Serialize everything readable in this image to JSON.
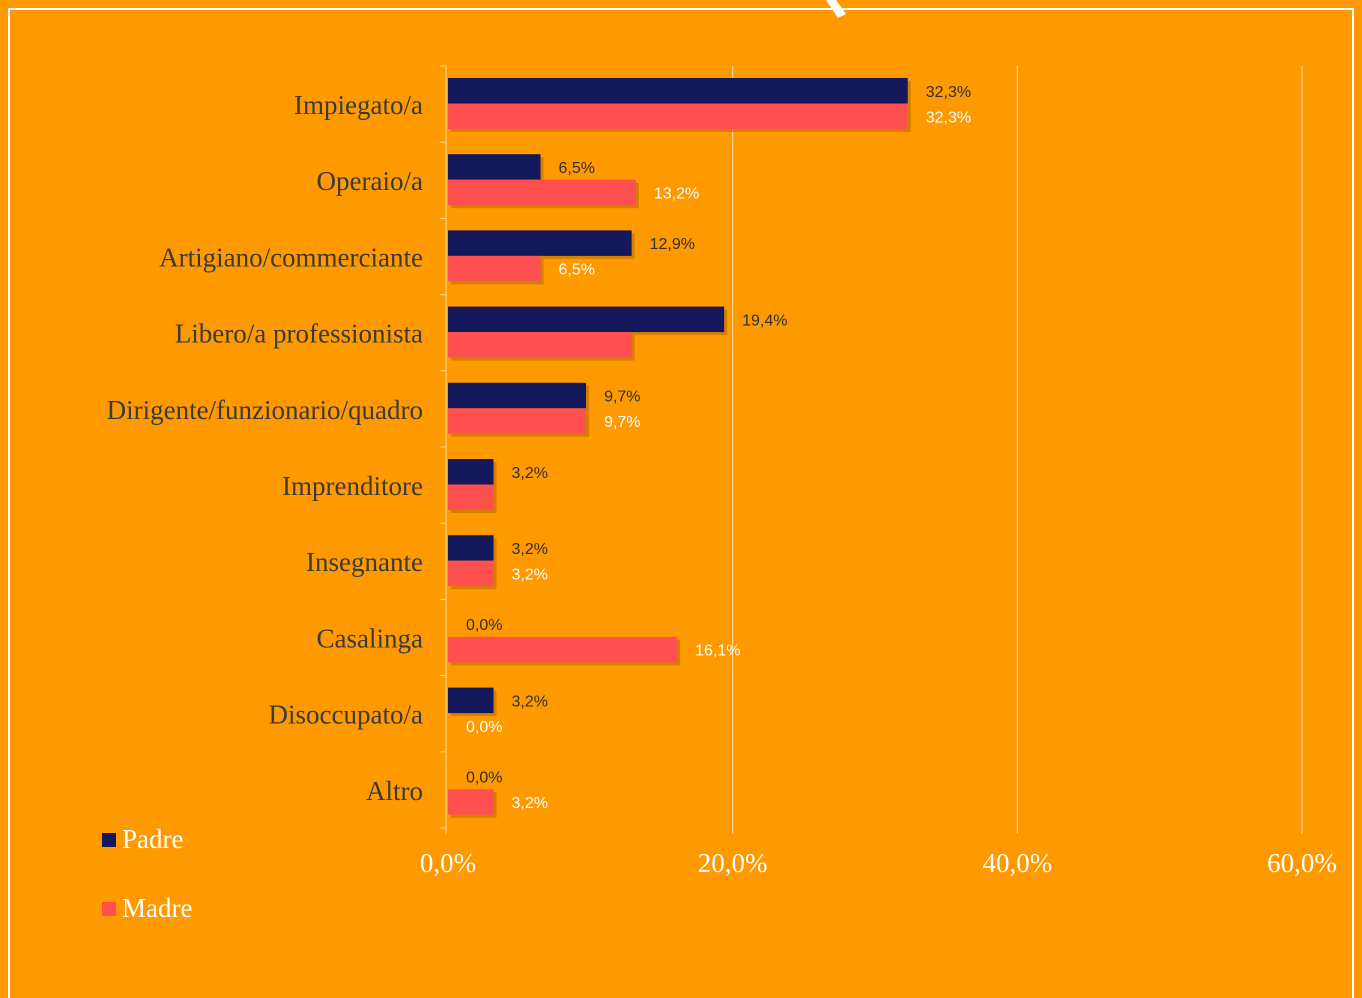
{
  "chart_data": {
    "type": "bar",
    "orientation": "horizontal",
    "categories": [
      "Impiegato/a",
      "Operaio/a ",
      "Artigiano/commerciante",
      "Libero/a professionista",
      "Dirigente/funzionario/quadro",
      "Imprenditore",
      "Insegnante",
      "Casalinga",
      "Disoccupato/a",
      "Altro"
    ],
    "series": [
      {
        "name": "Padre",
        "color": "#14185A",
        "values": [
          32.3,
          6.5,
          12.9,
          19.4,
          9.7,
          3.2,
          3.2,
          0.0,
          3.2,
          0.0
        ],
        "labels": [
          "32,3%",
          "6,5%",
          "12,9%",
          "19,4%",
          "9,7%",
          "3,2%",
          "3,2%",
          "0,0%",
          "3,2%",
          "0,0%"
        ]
      },
      {
        "name": "Madre",
        "color": "#FF5050",
        "values": [
          32.3,
          13.2,
          6.5,
          12.9,
          9.7,
          3.2,
          3.2,
          16.1,
          0.0,
          3.2
        ],
        "labels": [
          "32,3%",
          "13,2%",
          "6,5%",
          "",
          "9,7%",
          "",
          "3,2%",
          "16,1%",
          "0,0%",
          "3,2%"
        ]
      }
    ],
    "xlim": [
      0,
      60
    ],
    "xticks": [
      0,
      20,
      40,
      60
    ],
    "xtick_labels": [
      "0,0%",
      "20,0%",
      "40,0%",
      "60,0%"
    ],
    "grid": "vertical",
    "legend_placement": "bottom-left",
    "xlabel": "",
    "ylabel": "",
    "title": ""
  }
}
